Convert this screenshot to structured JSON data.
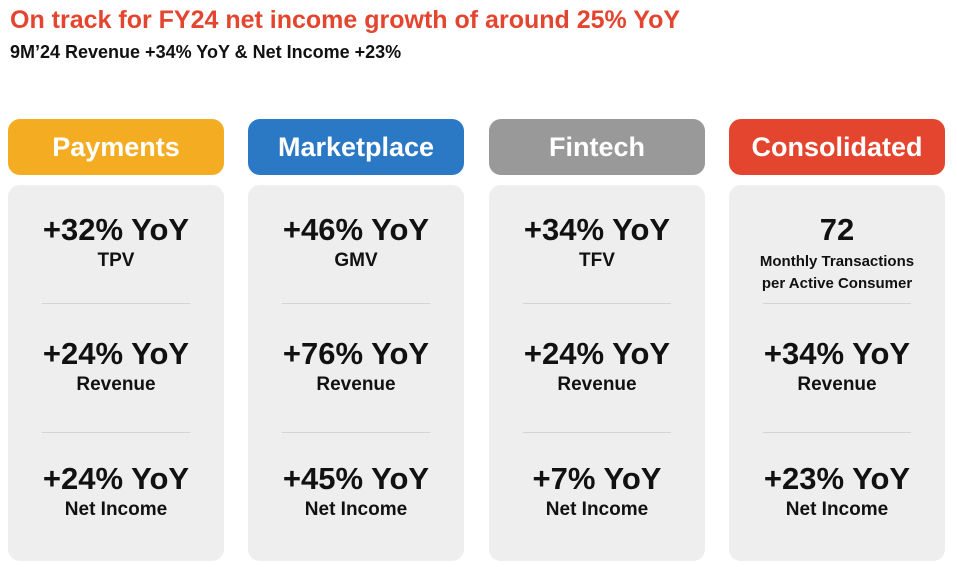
{
  "title": "On track for FY24 net income growth of around 25% YoY",
  "subtitle": "9M’24 Revenue +34% YoY & Net Income +23%",
  "columns": [
    {
      "header": "Payments",
      "color": "#f4ad22",
      "metrics": [
        {
          "value": "+32% YoY",
          "label": "TPV"
        },
        {
          "value": "+24% YoY",
          "label": "Revenue"
        },
        {
          "value": "+24% YoY",
          "label": "Net Income"
        }
      ]
    },
    {
      "header": "Marketplace",
      "color": "#2b78c5",
      "metrics": [
        {
          "value": "+46% YoY",
          "label": "GMV"
        },
        {
          "value": "+76% YoY",
          "label": "Revenue"
        },
        {
          "value": "+45% YoY",
          "label": "Net Income"
        }
      ]
    },
    {
      "header": "Fintech",
      "color": "#999999",
      "metrics": [
        {
          "value": "+34% YoY",
          "label": "TFV"
        },
        {
          "value": "+24% YoY",
          "label": "Revenue"
        },
        {
          "value": "+7% YoY",
          "label": "Net Income"
        }
      ]
    },
    {
      "header": "Consolidated",
      "color": "#e3452f",
      "metrics": [
        {
          "value": "72",
          "label_line1": "Monthly Transactions",
          "label_line2": "per Active Consumer"
        },
        {
          "value": "+34% YoY",
          "label": "Revenue"
        },
        {
          "value": "+23% YoY",
          "label": "Net Income"
        }
      ]
    }
  ]
}
